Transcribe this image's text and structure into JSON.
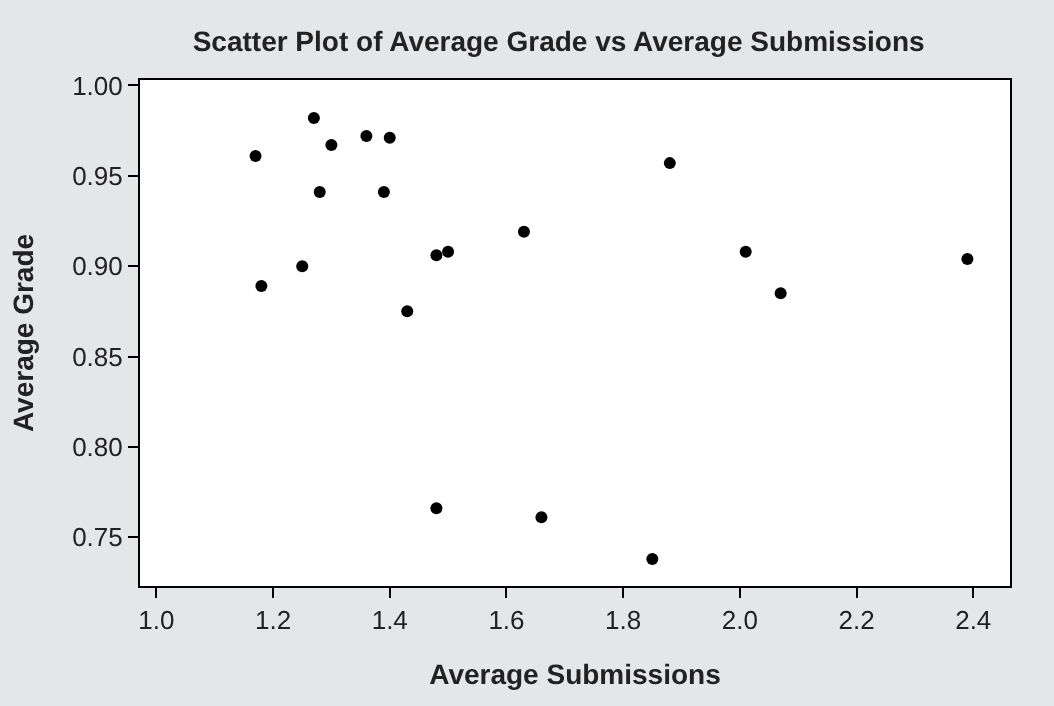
{
  "chart_data": {
    "type": "scatter",
    "title": "Scatter Plot of Average Grade vs Average Submissions",
    "xlabel": "Average Submissions",
    "ylabel": "Average Grade",
    "x": [
      1.17,
      1.27,
      1.3,
      1.36,
      1.4,
      1.28,
      1.39,
      1.63,
      1.48,
      1.5,
      1.25,
      1.18,
      1.43,
      1.48,
      1.66,
      1.88,
      2.01,
      2.39,
      2.07,
      1.85
    ],
    "series": [
      {
        "color": "#000000",
        "values": [
          0.961,
          0.982,
          0.967,
          0.972,
          0.971,
          0.941,
          0.941,
          0.919,
          0.906,
          0.908,
          0.9,
          0.889,
          0.875,
          0.766,
          0.761,
          0.957,
          0.908,
          0.904,
          0.885,
          0.738
        ]
      }
    ],
    "xlim": [
      0.972,
      2.463
    ],
    "ylim": [
      0.723,
      1.003
    ],
    "xticks": [
      {
        "value": 1.0,
        "label": "1.0"
      },
      {
        "value": 1.2,
        "label": "1.2"
      },
      {
        "value": 1.4,
        "label": "1.4"
      },
      {
        "value": 1.6,
        "label": "1.6"
      },
      {
        "value": 1.8,
        "label": "1.8"
      },
      {
        "value": 2.0,
        "label": "2.0"
      },
      {
        "value": 2.2,
        "label": "2.2"
      },
      {
        "value": 2.4,
        "label": "2.4"
      }
    ],
    "yticks": [
      {
        "value": 0.75,
        "label": "0.75"
      },
      {
        "value": 0.8,
        "label": "0.80"
      },
      {
        "value": 0.85,
        "label": "0.85"
      },
      {
        "value": 0.9,
        "label": "0.90"
      },
      {
        "value": 0.95,
        "label": "0.95"
      },
      {
        "value": 1.0,
        "label": "1.00"
      }
    ],
    "marker": "circle",
    "grid": false,
    "legend": false
  }
}
